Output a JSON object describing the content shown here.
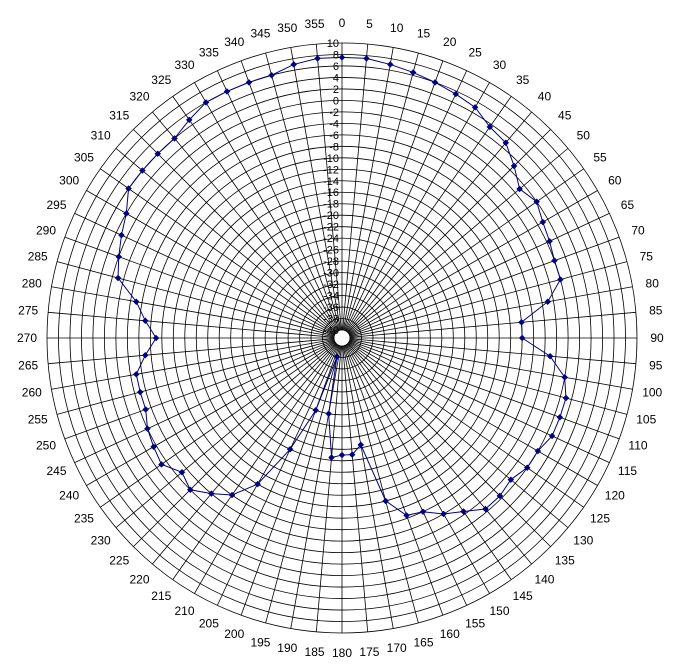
{
  "chart_data": {
    "type": "polar-line",
    "title": "",
    "angle_unit": "degrees",
    "angle_zero": "top",
    "angle_direction": "clockwise",
    "angle_labels": [
      "0",
      "5",
      "10",
      "15",
      "20",
      "25",
      "30",
      "35",
      "40",
      "45",
      "50",
      "55",
      "60",
      "65",
      "70",
      "75",
      "80",
      "85",
      "90",
      "95",
      "100",
      "105",
      "110",
      "115",
      "120",
      "125",
      "130",
      "135",
      "140",
      "145",
      "150",
      "155",
      "160",
      "165",
      "170",
      "175",
      "180",
      "185",
      "190",
      "195",
      "200",
      "205",
      "210",
      "215",
      "220",
      "225",
      "230",
      "235",
      "240",
      "245",
      "250",
      "255",
      "260",
      "265",
      "270",
      "275",
      "280",
      "285",
      "290",
      "295",
      "300",
      "305",
      "310",
      "315",
      "320",
      "325",
      "330",
      "335",
      "340",
      "345",
      "350",
      "355"
    ],
    "radial_axis": {
      "min": -40,
      "max": 10,
      "step": 2,
      "tick_labels": [
        "-40",
        "-38",
        "-36",
        "-34",
        "-32",
        "-30",
        "-28",
        "-26",
        "-24",
        "-22",
        "-20",
        "-18",
        "-16",
        "-14",
        "-12",
        "-10",
        "-8",
        "-6",
        "-4",
        "-2",
        "0",
        "2",
        "4",
        "6",
        "8",
        "10"
      ]
    },
    "grid": true,
    "series": [
      {
        "color": "#000080",
        "marker": "diamond",
        "points": [
          [
            0,
            7.5
          ],
          [
            5,
            7.5
          ],
          [
            10,
            7
          ],
          [
            15,
            6.5
          ],
          [
            20,
            6
          ],
          [
            25,
            5.5
          ],
          [
            30,
            5
          ],
          [
            35,
            3.5
          ],
          [
            40,
            3
          ],
          [
            45,
            1
          ],
          [
            50,
            -1
          ],
          [
            55,
            0
          ],
          [
            60,
            -1
          ],
          [
            65,
            -1.5
          ],
          [
            70,
            -2
          ],
          [
            75,
            -2
          ],
          [
            80,
            -5
          ],
          [
            85,
            -10
          ],
          [
            90,
            -10
          ],
          [
            95,
            -5
          ],
          [
            100,
            -2
          ],
          [
            105,
            -1
          ],
          [
            110,
            -1
          ],
          [
            115,
            -1
          ],
          [
            120,
            -2
          ],
          [
            125,
            -2
          ],
          [
            130,
            -3
          ],
          [
            135,
            -2.5
          ],
          [
            140,
            -2.5
          ],
          [
            145,
            -4.5
          ],
          [
            150,
            -6
          ],
          [
            155,
            -8
          ],
          [
            160,
            -8.5
          ],
          [
            165,
            -12
          ],
          [
            170,
            -22.5
          ],
          [
            175,
            -21
          ],
          [
            180,
            -21
          ],
          [
            185,
            -20.5
          ],
          [
            190,
            -28
          ],
          [
            195,
            -38
          ],
          [
            200,
            -28
          ],
          [
            205,
            -20
          ],
          [
            210,
            -12
          ],
          [
            215,
            -8
          ],
          [
            220,
            -6
          ],
          [
            225,
            -4
          ],
          [
            230,
            -5
          ],
          [
            235,
            -3
          ],
          [
            240,
            -3.5
          ],
          [
            245,
            -4
          ],
          [
            250,
            -5
          ],
          [
            255,
            -5
          ],
          [
            260,
            -5
          ],
          [
            265,
            -7
          ],
          [
            270,
            -9
          ],
          [
            275,
            -7
          ],
          [
            280,
            -5
          ],
          [
            285,
            -1
          ],
          [
            290,
            0
          ],
          [
            295,
            1
          ],
          [
            300,
            2
          ],
          [
            305,
            4
          ],
          [
            310,
            4
          ],
          [
            315,
            4
          ],
          [
            320,
            4
          ],
          [
            325,
            5
          ],
          [
            330,
            6
          ],
          [
            335,
            6
          ],
          [
            340,
            6
          ],
          [
            345,
            6
          ],
          [
            350,
            7
          ],
          [
            355,
            7.5
          ]
        ]
      }
    ]
  }
}
